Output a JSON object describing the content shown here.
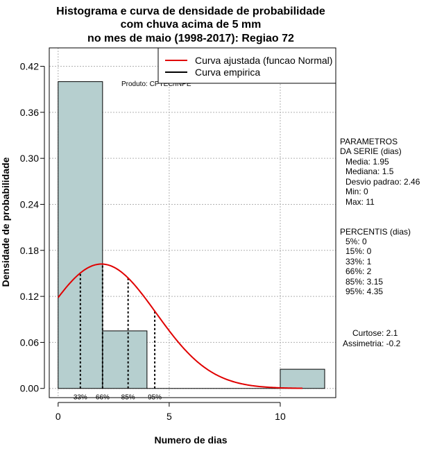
{
  "chart_data": {
    "type": "histogram",
    "title_lines": [
      "Histograma e curva de densidade de probabilidade",
      "com chuva acima de 5 mm",
      "no mes de maio (1998-2017): Regiao 72"
    ],
    "xlabel": "Numero de dias",
    "ylabel": "Densidade de probabilidade",
    "xlim": [
      -0.4,
      12.5
    ],
    "ylim": [
      -0.012,
      0.444
    ],
    "x_ticks": [
      0,
      5,
      10
    ],
    "x_tick_labels": [
      "0",
      "5",
      "10"
    ],
    "y_ticks": [
      0.0,
      0.06,
      0.12,
      0.18,
      0.24,
      0.3,
      0.36,
      0.42
    ],
    "y_tick_labels": [
      "0.00",
      "0.06",
      "0.12",
      "0.18",
      "0.24",
      "0.30",
      "0.36",
      "0.42"
    ],
    "grid": true,
    "bars": [
      {
        "x0": 0,
        "x1": 2,
        "density": 0.4
      },
      {
        "x0": 2,
        "x1": 4,
        "density": 0.075
      },
      {
        "x0": 4,
        "x1": 10,
        "density": 0.0
      },
      {
        "x0": 10,
        "x1": 12,
        "density": 0.025
      }
    ],
    "bar_color": "#b6cfcf",
    "normal_curve": {
      "mean": 1.95,
      "sd": 2.46,
      "x_from": 0,
      "x_to": 11,
      "color": "#e00000",
      "label": "Curva ajustada (funcao Normal)"
    },
    "empirical_curve": {
      "color": "#000000",
      "label": "Curva empirica"
    },
    "percentile_markers": [
      {
        "label": "33%",
        "x": 1.0
      },
      {
        "label": "66%",
        "x": 2.0
      },
      {
        "label": "85%",
        "x": 3.15
      },
      {
        "label": "95%",
        "x": 4.35
      }
    ],
    "legend_position": "top-right",
    "annotation": "Produto: CPTEC/INPE"
  },
  "side_panel": {
    "params_title_lines": [
      "PARAMETROS",
      "DA SERIE (dias)"
    ],
    "params": [
      "Media: 1.95",
      "Mediana: 1.5",
      "Desvio padrao: 2.46",
      "Min: 0",
      "Max: 11"
    ],
    "percentis_title": "PERCENTIS (dias)",
    "percentis": [
      "5%: 0",
      "15%: 0",
      "33%: 1",
      "66%: 2",
      "85%: 3.15",
      "95%: 4.35"
    ],
    "curtose": "Curtose: 2.1",
    "assimetria": "Assimetria: -0.2"
  }
}
